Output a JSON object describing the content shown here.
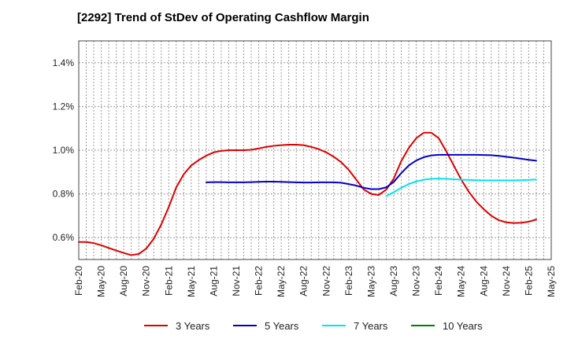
{
  "title": "[2292]  Trend of StDev of Operating Cashflow Margin",
  "chart_data": {
    "type": "line",
    "title": "[2292]  Trend of StDev of Operating Cashflow Margin",
    "xlabel": "",
    "ylabel": "",
    "x_ticks": [
      "Feb-20",
      "May-20",
      "Aug-20",
      "Nov-20",
      "Feb-21",
      "May-21",
      "Aug-21",
      "Nov-21",
      "Feb-22",
      "May-22",
      "Aug-22",
      "Nov-22",
      "Feb-23",
      "May-23",
      "Aug-23",
      "Nov-23",
      "Feb-24",
      "May-24",
      "Aug-24",
      "Nov-24",
      "Feb-25",
      "May-25"
    ],
    "y_ticks": [
      "0.6%",
      "0.8%",
      "1.0%",
      "1.2%",
      "1.4%"
    ],
    "y_tick_values": [
      0.6,
      0.8,
      1.0,
      1.2,
      1.4
    ],
    "ylim": [
      0.5,
      1.5
    ],
    "grid": true,
    "legend_position": "bottom",
    "series": [
      {
        "name": "3 Years",
        "color": "#dd0000",
        "points": [
          [
            "Feb-20",
            0.58
          ],
          [
            "Mar-20",
            0.58
          ],
          [
            "Apr-20",
            0.575
          ],
          [
            "May-20",
            0.565
          ],
          [
            "Jun-20",
            0.553
          ],
          [
            "Jul-20",
            0.541
          ],
          [
            "Aug-20",
            0.53
          ],
          [
            "Sep-20",
            0.52
          ],
          [
            "Oct-20",
            0.525
          ],
          [
            "Nov-20",
            0.55
          ],
          [
            "Dec-20",
            0.595
          ],
          [
            "Jan-21",
            0.66
          ],
          [
            "Feb-21",
            0.74
          ],
          [
            "Mar-21",
            0.83
          ],
          [
            "Apr-21",
            0.89
          ],
          [
            "May-21",
            0.93
          ],
          [
            "Jun-21",
            0.955
          ],
          [
            "Jul-21",
            0.975
          ],
          [
            "Aug-21",
            0.99
          ],
          [
            "Sep-21",
            0.997
          ],
          [
            "Oct-21",
            1.0
          ],
          [
            "Nov-21",
            1.0
          ],
          [
            "Dec-21",
            1.0
          ],
          [
            "Jan-22",
            1.002
          ],
          [
            "Feb-22",
            1.008
          ],
          [
            "Mar-22",
            1.015
          ],
          [
            "Apr-22",
            1.02
          ],
          [
            "May-22",
            1.023
          ],
          [
            "Jun-22",
            1.025
          ],
          [
            "Jul-22",
            1.025
          ],
          [
            "Aug-22",
            1.023
          ],
          [
            "Sep-22",
            1.015
          ],
          [
            "Oct-22",
            1.005
          ],
          [
            "Nov-22",
            0.99
          ],
          [
            "Dec-22",
            0.97
          ],
          [
            "Jan-23",
            0.945
          ],
          [
            "Feb-23",
            0.91
          ],
          [
            "Mar-23",
            0.865
          ],
          [
            "Apr-23",
            0.82
          ],
          [
            "May-23",
            0.8
          ],
          [
            "Jun-23",
            0.795
          ],
          [
            "Jul-23",
            0.82
          ],
          [
            "Aug-23",
            0.87
          ],
          [
            "Sep-23",
            0.95
          ],
          [
            "Oct-23",
            1.01
          ],
          [
            "Nov-23",
            1.055
          ],
          [
            "Dec-23",
            1.08
          ],
          [
            "Jan-24",
            1.08
          ],
          [
            "Feb-24",
            1.055
          ],
          [
            "Mar-24",
            0.995
          ],
          [
            "Apr-24",
            0.93
          ],
          [
            "May-24",
            0.865
          ],
          [
            "Jun-24",
            0.81
          ],
          [
            "Jul-24",
            0.765
          ],
          [
            "Aug-24",
            0.73
          ],
          [
            "Sep-24",
            0.7
          ],
          [
            "Oct-24",
            0.68
          ],
          [
            "Nov-24",
            0.67
          ],
          [
            "Dec-24",
            0.667
          ],
          [
            "Jan-25",
            0.668
          ],
          [
            "Feb-25",
            0.673
          ],
          [
            "Mar-25",
            0.683
          ]
        ]
      },
      {
        "name": "5 Years",
        "color": "#0000cc",
        "points": [
          [
            "Jul-21",
            0.853
          ],
          [
            "Aug-21",
            0.854
          ],
          [
            "Sep-21",
            0.854
          ],
          [
            "Oct-21",
            0.853
          ],
          [
            "Nov-21",
            0.853
          ],
          [
            "Dec-21",
            0.853
          ],
          [
            "Jan-22",
            0.854
          ],
          [
            "Feb-22",
            0.855
          ],
          [
            "Mar-22",
            0.856
          ],
          [
            "Apr-22",
            0.856
          ],
          [
            "May-22",
            0.855
          ],
          [
            "Jun-22",
            0.854
          ],
          [
            "Jul-22",
            0.853
          ],
          [
            "Aug-22",
            0.852
          ],
          [
            "Sep-22",
            0.852
          ],
          [
            "Oct-22",
            0.853
          ],
          [
            "Nov-22",
            0.853
          ],
          [
            "Dec-22",
            0.853
          ],
          [
            "Jan-23",
            0.851
          ],
          [
            "Feb-23",
            0.845
          ],
          [
            "Mar-23",
            0.838
          ],
          [
            "Apr-23",
            0.828
          ],
          [
            "May-23",
            0.822
          ],
          [
            "Jun-23",
            0.822
          ],
          [
            "Jul-23",
            0.83
          ],
          [
            "Aug-23",
            0.855
          ],
          [
            "Sep-23",
            0.895
          ],
          [
            "Oct-23",
            0.93
          ],
          [
            "Nov-23",
            0.953
          ],
          [
            "Dec-23",
            0.968
          ],
          [
            "Jan-24",
            0.976
          ],
          [
            "Feb-24",
            0.979
          ],
          [
            "Mar-24",
            0.979
          ],
          [
            "Apr-24",
            0.979
          ],
          [
            "May-24",
            0.979
          ],
          [
            "Jun-24",
            0.979
          ],
          [
            "Jul-24",
            0.979
          ],
          [
            "Aug-24",
            0.978
          ],
          [
            "Sep-24",
            0.977
          ],
          [
            "Oct-24",
            0.974
          ],
          [
            "Nov-24",
            0.97
          ],
          [
            "Dec-24",
            0.966
          ],
          [
            "Jan-25",
            0.961
          ],
          [
            "Feb-25",
            0.956
          ],
          [
            "Mar-25",
            0.952
          ]
        ]
      },
      {
        "name": "7 Years",
        "color": "#00e5ee",
        "points": [
          [
            "Jul-23",
            0.79
          ],
          [
            "Aug-23",
            0.808
          ],
          [
            "Sep-23",
            0.828
          ],
          [
            "Oct-23",
            0.845
          ],
          [
            "Nov-23",
            0.857
          ],
          [
            "Dec-23",
            0.865
          ],
          [
            "Jan-24",
            0.869
          ],
          [
            "Feb-24",
            0.87
          ],
          [
            "Mar-24",
            0.869
          ],
          [
            "Apr-24",
            0.867
          ],
          [
            "May-24",
            0.865
          ],
          [
            "Jun-24",
            0.864
          ],
          [
            "Jul-24",
            0.863
          ],
          [
            "Aug-24",
            0.862
          ],
          [
            "Sep-24",
            0.862
          ],
          [
            "Oct-24",
            0.862
          ],
          [
            "Nov-24",
            0.862
          ],
          [
            "Dec-24",
            0.862
          ],
          [
            "Jan-25",
            0.863
          ],
          [
            "Feb-25",
            0.864
          ],
          [
            "Mar-25",
            0.866
          ]
        ]
      },
      {
        "name": "10 Years",
        "color": "#008000",
        "points": []
      }
    ]
  }
}
